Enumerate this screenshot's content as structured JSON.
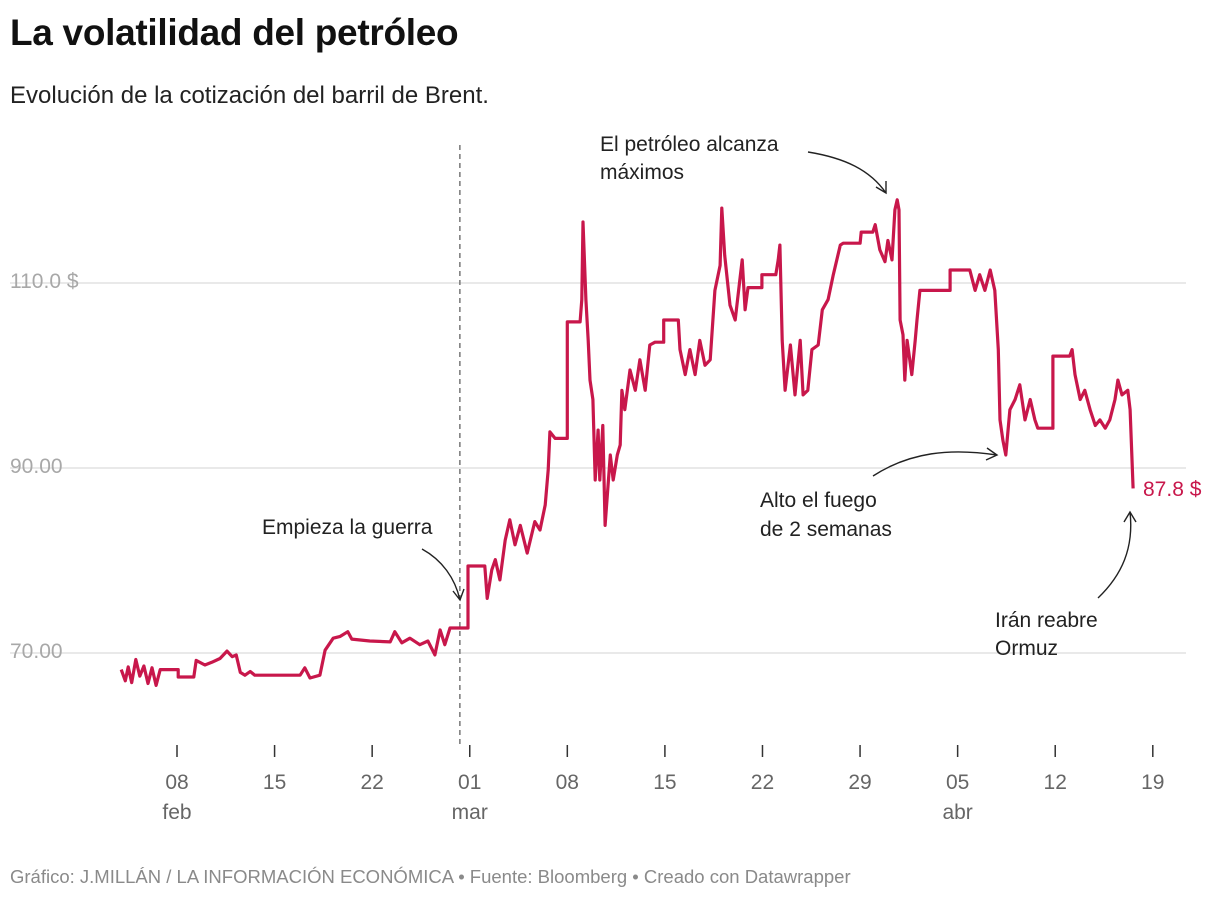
{
  "title": "La volatilidad del petróleo",
  "subtitle": "Evolución de la cotización del barril de Brent.",
  "footer": "Gráfico: J.MILLÁN / LA INFORMACIÓN ECONÓMICA • Fuente: Bloomberg • Creado con Datawrapper",
  "colors": {
    "line": "#c8174b",
    "grid": "#e2e2e2",
    "end_label": "#c8174b"
  },
  "chart_data": {
    "type": "line",
    "title": "La volatilidad del petróleo",
    "subtitle": "Evolución de la cotización del barril de Brent.",
    "ylim": [
      61,
      120
    ],
    "y_ticks": [
      {
        "value": 110,
        "label": "110.0 $"
      },
      {
        "value": 90,
        "label": "90.00"
      },
      {
        "value": 70,
        "label": "70.00"
      }
    ],
    "x_ticks": [
      {
        "date": "02-08",
        "label": "08",
        "month": "feb"
      },
      {
        "date": "02-15",
        "label": "15",
        "month": ""
      },
      {
        "date": "02-22",
        "label": "22",
        "month": ""
      },
      {
        "date": "03-01",
        "label": "01",
        "month": "mar"
      },
      {
        "date": "03-08",
        "label": "08",
        "month": ""
      },
      {
        "date": "03-15",
        "label": "15",
        "month": ""
      },
      {
        "date": "03-22",
        "label": "22",
        "month": ""
      },
      {
        "date": "03-29",
        "label": "29",
        "month": ""
      },
      {
        "date": "04-05",
        "label": "05",
        "month": "abr"
      },
      {
        "date": "04-12",
        "label": "12",
        "month": ""
      },
      {
        "date": "04-19",
        "label": "19",
        "month": ""
      }
    ],
    "grid": true,
    "end_label": "87.8 $",
    "marker_line": "02-28 07",
    "annotations": [
      {
        "lines": [
          "El petróleo alcanza",
          "máximos"
        ]
      },
      {
        "lines": [
          "Empieza la guerra"
        ]
      },
      {
        "lines": [
          "Alto el fuego",
          "de 2 semanas"
        ]
      },
      {
        "lines": [
          "Irán reabre",
          "Ormuz"
        ]
      }
    ],
    "series": [
      {
        "points": [
          [
            "02-04 00",
            68.2
          ],
          [
            "02-04 07",
            67.0
          ],
          [
            "02-04 12",
            68.5
          ],
          [
            "02-04 18",
            66.8
          ],
          [
            "02-05 01",
            69.3
          ],
          [
            "02-05 08",
            67.5
          ],
          [
            "02-05 15",
            68.6
          ],
          [
            "02-05 22",
            66.7
          ],
          [
            "02-06 05",
            68.4
          ],
          [
            "02-06 12",
            66.5
          ],
          [
            "02-06 19",
            68.2
          ],
          [
            "02-08 02",
            68.2
          ],
          [
            "02-08 02",
            67.4
          ],
          [
            "02-09 05",
            67.4
          ],
          [
            "02-09 09",
            69.2
          ],
          [
            "02-10 00",
            68.7
          ],
          [
            "02-10 12",
            69.0
          ],
          [
            "02-11 02",
            69.4
          ],
          [
            "02-11 14",
            70.2
          ],
          [
            "02-11 23",
            69.6
          ],
          [
            "02-12 06",
            69.8
          ],
          [
            "02-12 13",
            67.9
          ],
          [
            "02-12 21",
            67.6
          ],
          [
            "02-13 06",
            68.0
          ],
          [
            "02-13 14",
            67.6
          ],
          [
            "02-16 20",
            67.6
          ],
          [
            "02-17 04",
            68.4
          ],
          [
            "02-17 13",
            67.3
          ],
          [
            "02-18 06",
            67.6
          ],
          [
            "02-18 15",
            70.3
          ],
          [
            "02-19 05",
            71.6
          ],
          [
            "02-19 17",
            71.8
          ],
          [
            "02-20 06",
            72.3
          ],
          [
            "02-20 13",
            71.5
          ],
          [
            "02-21 20",
            71.3
          ],
          [
            "02-23 07",
            71.2
          ],
          [
            "02-23 15",
            72.3
          ],
          [
            "02-24 03",
            71.1
          ],
          [
            "02-24 17",
            71.6
          ],
          [
            "02-25 10",
            70.9
          ],
          [
            "02-26 00",
            71.3
          ],
          [
            "02-26 12",
            69.8
          ],
          [
            "02-26 21",
            72.5
          ],
          [
            "02-27 05",
            70.9
          ],
          [
            "02-27 14",
            72.7
          ],
          [
            "02-28 21",
            72.7
          ],
          [
            "02-28 21",
            79.4
          ],
          [
            "03-02 02",
            79.4
          ],
          [
            "03-02 06",
            75.9
          ],
          [
            "03-02 14",
            79.0
          ],
          [
            "03-02 20",
            80.1
          ],
          [
            "03-03 04",
            77.9
          ],
          [
            "03-03 13",
            82.2
          ],
          [
            "03-03 21",
            84.4
          ],
          [
            "03-04 06",
            81.7
          ],
          [
            "03-04 15",
            83.8
          ],
          [
            "03-05 03",
            80.8
          ],
          [
            "03-05 16",
            84.2
          ],
          [
            "03-06 01",
            83.3
          ],
          [
            "03-06 10",
            86.0
          ],
          [
            "03-06 15",
            89.8
          ],
          [
            "03-06 18",
            93.9
          ],
          [
            "03-07 03",
            93.2
          ],
          [
            "03-08 00",
            93.2
          ],
          [
            "03-08 00",
            105.8
          ],
          [
            "03-08 22",
            105.8
          ],
          [
            "03-09 01",
            108.2
          ],
          [
            "03-09 03",
            116.6
          ],
          [
            "03-09 08",
            108.2
          ],
          [
            "03-09 12",
            103.8
          ],
          [
            "03-09 15",
            99.5
          ],
          [
            "03-09 20",
            97.4
          ],
          [
            "03-10 00",
            88.7
          ],
          [
            "03-10 05",
            94.1
          ],
          [
            "03-10 08",
            88.7
          ],
          [
            "03-10 13",
            94.6
          ],
          [
            "03-10 17",
            83.8
          ],
          [
            "03-11 02",
            91.4
          ],
          [
            "03-11 07",
            88.7
          ],
          [
            "03-11 14",
            91.4
          ],
          [
            "03-11 19",
            92.5
          ],
          [
            "03-11 22",
            98.4
          ],
          [
            "03-12 03",
            96.3
          ],
          [
            "03-12 12",
            100.6
          ],
          [
            "03-12 21",
            98.4
          ],
          [
            "03-13 05",
            101.7
          ],
          [
            "03-13 14",
            98.4
          ],
          [
            "03-13 22",
            103.3
          ],
          [
            "03-14 07",
            103.6
          ],
          [
            "03-14 22",
            103.6
          ],
          [
            "03-14 22",
            106.0
          ],
          [
            "03-15 23",
            106.0
          ],
          [
            "03-16 02",
            102.8
          ],
          [
            "03-16 11",
            100.1
          ],
          [
            "03-16 19",
            102.8
          ],
          [
            "03-17 04",
            100.1
          ],
          [
            "03-17 12",
            103.8
          ],
          [
            "03-17 21",
            101.1
          ],
          [
            "03-18 06",
            101.7
          ],
          [
            "03-18 14",
            109.2
          ],
          [
            "03-18 23",
            111.9
          ],
          [
            "03-19 02",
            118.1
          ],
          [
            "03-19 07",
            113.0
          ],
          [
            "03-19 16",
            107.6
          ],
          [
            "03-20 01",
            106.0
          ],
          [
            "03-20 09",
            110.3
          ],
          [
            "03-20 13",
            112.5
          ],
          [
            "03-20 18",
            107.1
          ],
          [
            "03-20 23",
            109.5
          ],
          [
            "03-21 23",
            109.5
          ],
          [
            "03-21 23",
            110.9
          ],
          [
            "03-22 23",
            110.9
          ],
          [
            "03-23 03",
            112.5
          ],
          [
            "03-23 06",
            114.1
          ],
          [
            "03-23 10",
            103.8
          ],
          [
            "03-23 15",
            98.4
          ],
          [
            "03-24 00",
            103.3
          ],
          [
            "03-24 08",
            97.9
          ],
          [
            "03-24 17",
            103.8
          ],
          [
            "03-24 22",
            97.9
          ],
          [
            "03-25 06",
            98.4
          ],
          [
            "03-25 13",
            102.8
          ],
          [
            "03-26 00",
            103.3
          ],
          [
            "03-26 07",
            107.1
          ],
          [
            "03-26 17",
            108.2
          ],
          [
            "03-27 02",
            110.9
          ],
          [
            "03-27 14",
            114.1
          ],
          [
            "03-27 19",
            114.3
          ],
          [
            "03-29 00",
            114.3
          ],
          [
            "03-29 02",
            115.5
          ],
          [
            "03-29 22",
            115.5
          ],
          [
            "03-30 02",
            116.3
          ],
          [
            "03-30 10",
            113.6
          ],
          [
            "03-30 19",
            112.3
          ],
          [
            "03-31 00",
            114.6
          ],
          [
            "03-31 07",
            112.5
          ],
          [
            "03-31 12",
            117.9
          ],
          [
            "03-31 16",
            119.0
          ],
          [
            "03-31 19",
            117.9
          ],
          [
            "03-31 21",
            106.0
          ],
          [
            "04-01 02",
            104.4
          ],
          [
            "04-01 05",
            99.5
          ],
          [
            "04-01 09",
            103.8
          ],
          [
            "04-01 17",
            100.1
          ],
          [
            "04-01 23",
            103.8
          ],
          [
            "04-02 02",
            106.0
          ],
          [
            "04-02 07",
            109.2
          ],
          [
            "04-02 16",
            109.2
          ],
          [
            "04-04 11",
            109.2
          ],
          [
            "04-04 11",
            111.4
          ],
          [
            "04-05 21",
            111.4
          ],
          [
            "04-06 06",
            109.2
          ],
          [
            "04-06 14",
            110.9
          ],
          [
            "04-06 23",
            109.2
          ],
          [
            "04-07 08",
            111.4
          ],
          [
            "04-07 16",
            109.2
          ],
          [
            "04-07 22",
            102.8
          ],
          [
            "04-08 01",
            95.2
          ],
          [
            "04-08 06",
            93.0
          ],
          [
            "04-08 11",
            91.4
          ],
          [
            "04-08 18",
            96.3
          ],
          [
            "04-09 03",
            97.4
          ],
          [
            "04-09 11",
            99.0
          ],
          [
            "04-09 20",
            95.2
          ],
          [
            "04-10 05",
            97.4
          ],
          [
            "04-10 13",
            95.2
          ],
          [
            "04-10 18",
            94.3
          ],
          [
            "04-11 20",
            94.3
          ],
          [
            "04-11 20",
            102.1
          ],
          [
            "04-13 01",
            102.1
          ],
          [
            "04-13 05",
            102.8
          ],
          [
            "04-13 10",
            100.1
          ],
          [
            "04-13 19",
            97.4
          ],
          [
            "04-14 03",
            98.4
          ],
          [
            "04-14 12",
            96.3
          ],
          [
            "04-14 21",
            94.6
          ],
          [
            "04-15 05",
            95.2
          ],
          [
            "04-15 14",
            94.3
          ],
          [
            "04-15 22",
            95.2
          ],
          [
            "04-16 07",
            97.4
          ],
          [
            "04-16 12",
            99.5
          ],
          [
            "04-16 19",
            97.9
          ],
          [
            "04-17 05",
            98.4
          ],
          [
            "04-17 09",
            96.3
          ],
          [
            "04-17 14",
            87.8
          ]
        ]
      }
    ]
  }
}
